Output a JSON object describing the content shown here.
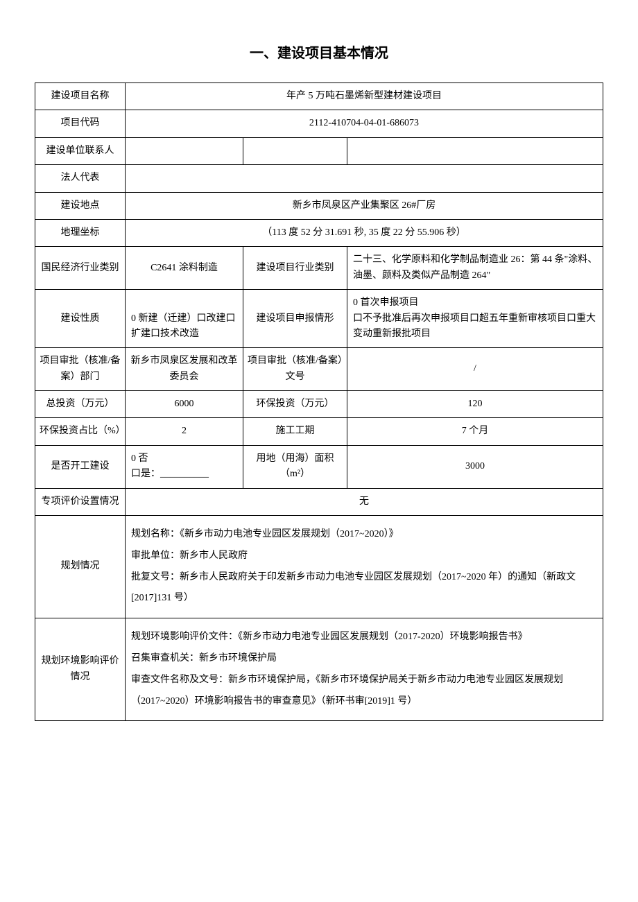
{
  "title": "一、建设项目基本情况",
  "rows": {
    "project_name_label": "建设项目名称",
    "project_name_value": "年产 5 万吨石墨烯新型建材建设项目",
    "project_code_label": "项目代码",
    "project_code_value": "2112-410704-04-01-686073",
    "contact_label": "建设单位联系人",
    "contact_value": "",
    "legal_label": "法人代表",
    "legal_value": "",
    "location_label": "建设地点",
    "location_value": "新乡市凤泉区产业集聚区 26#厂房",
    "coords_label": "地理坐标",
    "coords_value": "（113 度 52 分 31.691 秒, 35 度 22 分 55.906 秒）",
    "industry_label": "国民经济行业类别",
    "industry_value": "C2641 涂料制造",
    "industry_cat_label": "建设项目行业类别",
    "industry_cat_value": "二十三、化学原料和化学制品制造业 26：第 44 条\"涂料、油墨、颜料及类似产品制造 264\"",
    "nature_label": "建设性质",
    "nature_value": "0 新建（迁建）口改建口扩建口技术改造",
    "report_label": "建设项目申报情形",
    "report_value": "0 首次申报项目\n口不予批准后再次申报项目口超五年重新审核项目口重大变动重新报批项目",
    "approval_dept_label": "项目审批（核准/备案）部门",
    "approval_dept_value": "新乡市凤泉区发展和改革委员会",
    "approval_doc_label": "项目审批（核准/备案）文号",
    "approval_doc_value": "/",
    "total_invest_label": "总投资（万元）",
    "total_invest_value": "6000",
    "env_invest_label": "环保投资（万元）",
    "env_invest_value": "120",
    "env_ratio_label": "环保投资占比（%）",
    "env_ratio_value": "2",
    "construction_period_label": "施工工期",
    "construction_period_value": "7 个月",
    "started_label": "是否开工建设",
    "started_value": "0 否\n口是：__________",
    "land_area_label": "用地（用海）面积（m²）",
    "land_area_value": "3000",
    "special_eval_label": "专项评价设置情况",
    "special_eval_value": "无",
    "planning_label": "规划情况",
    "planning_value": "规划名称：《新乡市动力电池专业园区发展规划（2017~2020）》\n审批单位：新乡市人民政府\n批复文号：新乡市人民政府关于印发新乡市动力电池专业园区发展规划（2017~2020 年）的通知（新政文[2017]131 号）",
    "plan_env_label": "规划环境影响评价情况",
    "plan_env_value": "规划环境影响评价文件：《新乡市动力电池专业园区发展规划（2017-2020）环境影响报告书》\n召集审查机关：新乡市环境保护局\n审查文件名称及文号：新乡市环境保护局，《新乡市环境保护局关于新乡市动力电池专业园区发展规划（2017~2020）环境影响报告书的审查意见》（新环书审[2019]1 号）"
  }
}
